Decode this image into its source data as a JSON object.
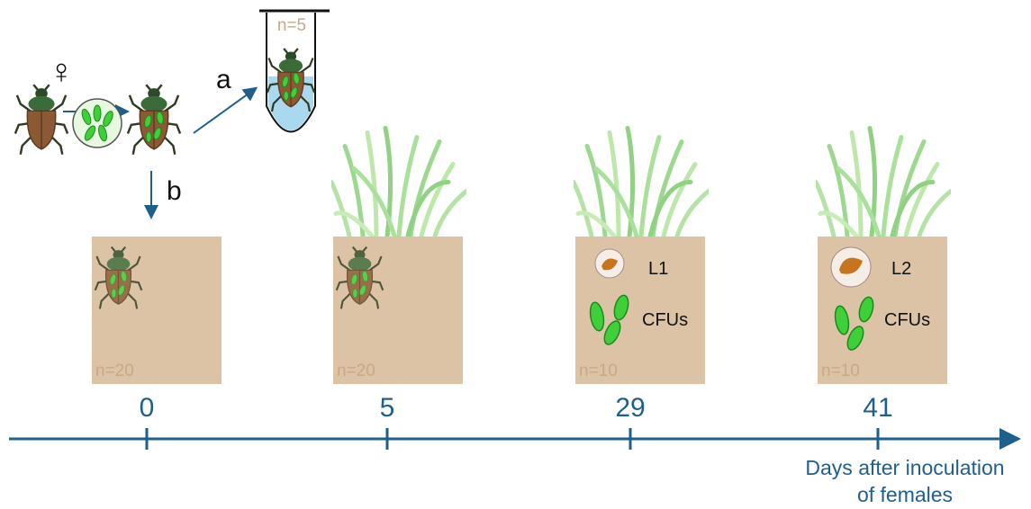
{
  "inoculation": {
    "symbol": "♀",
    "route_a": "a",
    "route_b": "b",
    "tube_label": "n=5"
  },
  "boxes": [
    {
      "day": "0",
      "n_label": "n=20"
    },
    {
      "day": "5",
      "n_label": "n=20"
    },
    {
      "day": "29",
      "n_label": "n=10",
      "stage": "L1",
      "bacteria": "CFUs"
    },
    {
      "day": "41",
      "n_label": "n=10",
      "stage": "L2",
      "bacteria": "CFUs"
    }
  ],
  "timeline": {
    "axis_label": [
      "Days after inoculation",
      "of females"
    ]
  }
}
